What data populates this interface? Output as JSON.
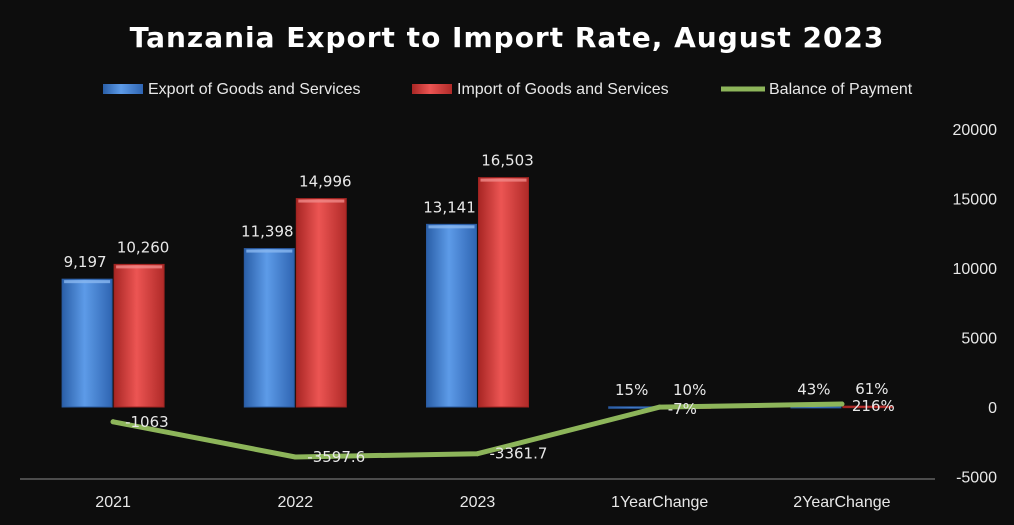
{
  "chart_data": {
    "type": "bar",
    "title": "Tanzania Export to Import Rate, August 2023",
    "categories": [
      "2021",
      "2022",
      "2023",
      "1YearChange",
      "2YearChange"
    ],
    "series": [
      {
        "name": "Export of Goods and Services",
        "kind": "bar",
        "color": "#3f7fd6",
        "values": [
          9197,
          11398,
          13141,
          15,
          43
        ],
        "labels": [
          "9,197",
          "11,398",
          "13,141",
          "15%",
          "43%"
        ]
      },
      {
        "name": "Import of Goods and Services",
        "kind": "bar",
        "color": "#d63a38",
        "values": [
          10260,
          14996,
          16503,
          10,
          61
        ],
        "labels": [
          "10,260",
          "14,996",
          "16,503",
          "10%",
          "61%"
        ]
      },
      {
        "name": "Balance of Payment",
        "kind": "line",
        "color": "#8db55a",
        "values": [
          -1063,
          -3597.6,
          -3361.7,
          -7,
          216
        ],
        "labels": [
          "-1063",
          "-3597.6",
          "-3361.7",
          "-7%",
          "216%"
        ]
      }
    ],
    "y_axis": {
      "position": "right",
      "min": -5000,
      "max": 20000,
      "ticks": [
        "20000",
        "15000",
        "10000",
        "5000",
        "0",
        "-5000"
      ]
    },
    "legend": "top",
    "grid": false
  }
}
